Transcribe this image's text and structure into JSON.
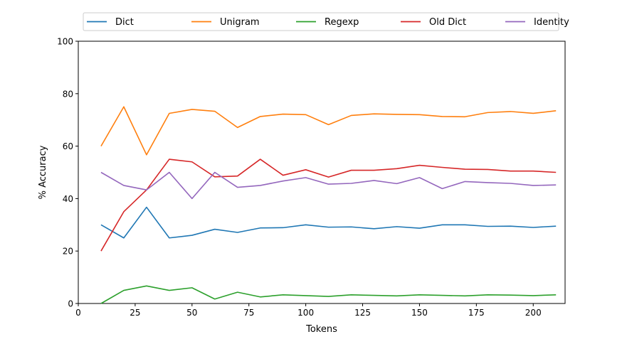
{
  "chart_data": {
    "type": "line",
    "title": "",
    "xlabel": "Tokens",
    "ylabel": "% Accuracy",
    "xlim": [
      0,
      214
    ],
    "ylim": [
      0,
      100
    ],
    "xticks": [
      0,
      25,
      50,
      75,
      100,
      125,
      150,
      175,
      200
    ],
    "yticks": [
      0,
      20,
      40,
      60,
      80,
      100
    ],
    "grid": false,
    "legend_position": "top-center",
    "x": [
      10,
      20,
      30,
      40,
      50,
      60,
      70,
      80,
      90,
      100,
      110,
      120,
      130,
      140,
      150,
      160,
      170,
      180,
      190,
      200,
      210
    ],
    "series": [
      {
        "name": "Dict",
        "color": "#1f77b4",
        "values": [
          30.0,
          25.0,
          36.7,
          25.0,
          26.0,
          28.3,
          27.1,
          28.8,
          28.9,
          30.0,
          29.1,
          29.2,
          28.5,
          29.3,
          28.7,
          30.0,
          30.0,
          29.4,
          29.5,
          29.0,
          29.5
        ]
      },
      {
        "name": "Unigram",
        "color": "#ff7f0e",
        "values": [
          60.0,
          75.0,
          56.7,
          72.5,
          74.0,
          73.3,
          67.1,
          71.3,
          72.2,
          72.0,
          68.2,
          71.7,
          72.3,
          72.1,
          72.0,
          71.3,
          71.2,
          72.8,
          73.2,
          72.5,
          73.5
        ]
      },
      {
        "name": "Regexp",
        "color": "#2ca02c",
        "values": [
          0.0,
          5.0,
          6.7,
          5.0,
          6.0,
          1.7,
          4.3,
          2.5,
          3.3,
          3.0,
          2.7,
          3.3,
          3.1,
          2.9,
          3.3,
          3.1,
          2.9,
          3.3,
          3.2,
          3.0,
          3.3
        ]
      },
      {
        "name": "Old Dict",
        "color": "#d62728",
        "values": [
          20.0,
          35.0,
          43.3,
          55.0,
          54.0,
          48.3,
          48.6,
          55.0,
          48.9,
          51.0,
          48.2,
          50.8,
          50.8,
          51.4,
          52.7,
          51.9,
          51.2,
          51.1,
          50.5,
          50.5,
          50.0
        ]
      },
      {
        "name": "Identity",
        "color": "#9467bd",
        "values": [
          50.0,
          45.0,
          43.3,
          50.0,
          40.0,
          50.0,
          44.3,
          45.0,
          46.7,
          48.0,
          45.5,
          45.8,
          46.9,
          45.7,
          48.0,
          43.8,
          46.5,
          46.1,
          45.8,
          45.0,
          45.2
        ]
      }
    ]
  }
}
